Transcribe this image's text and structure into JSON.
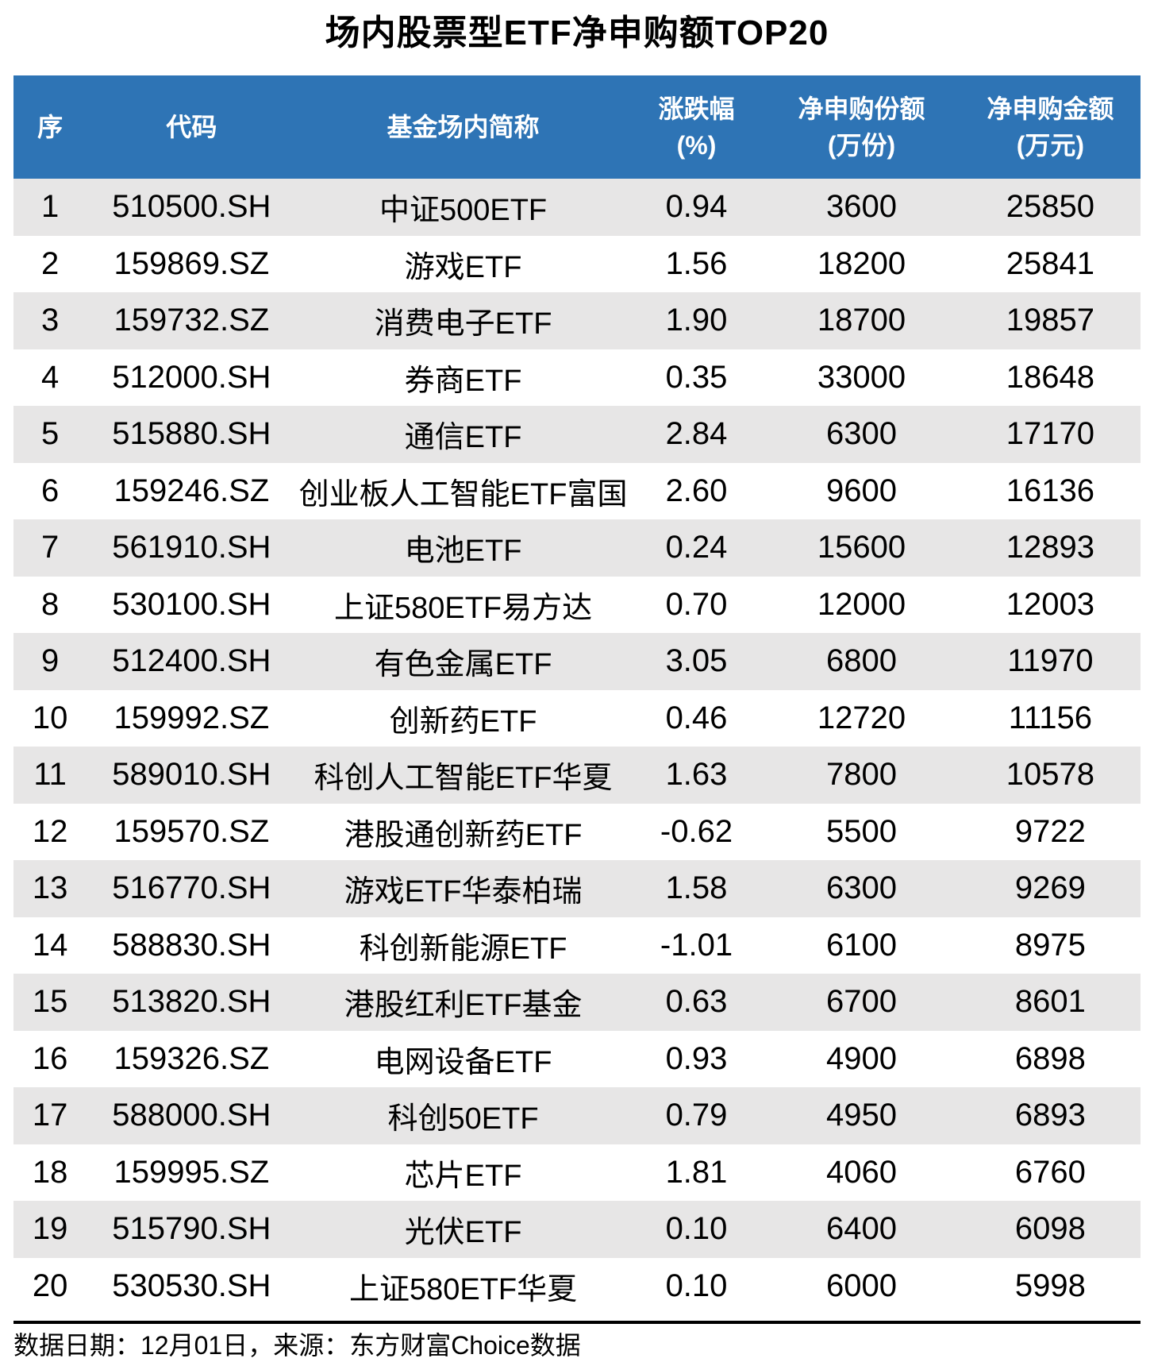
{
  "title": "场内股票型ETF净申购额TOP20",
  "colors": {
    "header_bg": "#2E74B5",
    "header_text": "#FFFFFF",
    "stripe_bg": "#E7E6E6",
    "body_text": "#000000"
  },
  "table": {
    "columns": [
      {
        "id": "rank",
        "lines": [
          "序"
        ]
      },
      {
        "id": "code",
        "lines": [
          "代码"
        ]
      },
      {
        "id": "name",
        "lines": [
          "基金场内简称"
        ]
      },
      {
        "id": "change",
        "lines": [
          "涨跌幅",
          "(%)"
        ]
      },
      {
        "id": "net_shares",
        "lines": [
          "净申购份额",
          "(万份)"
        ]
      },
      {
        "id": "net_amount",
        "lines": [
          "净申购金额",
          "(万元)"
        ]
      }
    ],
    "rows": [
      {
        "rank": "1",
        "code": "510500.SH",
        "name": "中证500ETF",
        "change": "0.94",
        "net_shares": "3600",
        "net_amount": "25850"
      },
      {
        "rank": "2",
        "code": "159869.SZ",
        "name": "游戏ETF",
        "change": "1.56",
        "net_shares": "18200",
        "net_amount": "25841"
      },
      {
        "rank": "3",
        "code": "159732.SZ",
        "name": "消费电子ETF",
        "change": "1.90",
        "net_shares": "18700",
        "net_amount": "19857"
      },
      {
        "rank": "4",
        "code": "512000.SH",
        "name": "券商ETF",
        "change": "0.35",
        "net_shares": "33000",
        "net_amount": "18648"
      },
      {
        "rank": "5",
        "code": "515880.SH",
        "name": "通信ETF",
        "change": "2.84",
        "net_shares": "6300",
        "net_amount": "17170"
      },
      {
        "rank": "6",
        "code": "159246.SZ",
        "name": "创业板人工智能ETF富国",
        "change": "2.60",
        "net_shares": "9600",
        "net_amount": "16136"
      },
      {
        "rank": "7",
        "code": "561910.SH",
        "name": "电池ETF",
        "change": "0.24",
        "net_shares": "15600",
        "net_amount": "12893"
      },
      {
        "rank": "8",
        "code": "530100.SH",
        "name": "上证580ETF易方达",
        "change": "0.70",
        "net_shares": "12000",
        "net_amount": "12003"
      },
      {
        "rank": "9",
        "code": "512400.SH",
        "name": "有色金属ETF",
        "change": "3.05",
        "net_shares": "6800",
        "net_amount": "11970"
      },
      {
        "rank": "10",
        "code": "159992.SZ",
        "name": "创新药ETF",
        "change": "0.46",
        "net_shares": "12720",
        "net_amount": "11156"
      },
      {
        "rank": "11",
        "code": "589010.SH",
        "name": "科创人工智能ETF华夏",
        "change": "1.63",
        "net_shares": "7800",
        "net_amount": "10578"
      },
      {
        "rank": "12",
        "code": "159570.SZ",
        "name": "港股通创新药ETF",
        "change": "-0.62",
        "net_shares": "5500",
        "net_amount": "9722"
      },
      {
        "rank": "13",
        "code": "516770.SH",
        "name": "游戏ETF华泰柏瑞",
        "change": "1.58",
        "net_shares": "6300",
        "net_amount": "9269"
      },
      {
        "rank": "14",
        "code": "588830.SH",
        "name": "科创新能源ETF",
        "change": "-1.01",
        "net_shares": "6100",
        "net_amount": "8975"
      },
      {
        "rank": "15",
        "code": "513820.SH",
        "name": "港股红利ETF基金",
        "change": "0.63",
        "net_shares": "6700",
        "net_amount": "8601"
      },
      {
        "rank": "16",
        "code": "159326.SZ",
        "name": "电网设备ETF",
        "change": "0.93",
        "net_shares": "4900",
        "net_amount": "6898"
      },
      {
        "rank": "17",
        "code": "588000.SH",
        "name": "科创50ETF",
        "change": "0.79",
        "net_shares": "4950",
        "net_amount": "6893"
      },
      {
        "rank": "18",
        "code": "159995.SZ",
        "name": "芯片ETF",
        "change": "1.81",
        "net_shares": "4060",
        "net_amount": "6760"
      },
      {
        "rank": "19",
        "code": "515790.SH",
        "name": "光伏ETF",
        "change": "0.10",
        "net_shares": "6400",
        "net_amount": "6098"
      },
      {
        "rank": "20",
        "code": "530530.SH",
        "name": "上证580ETF华夏",
        "change": "0.10",
        "net_shares": "6000",
        "net_amount": "5998"
      }
    ]
  },
  "footer": {
    "text": "数据日期：12月01日，来源：东方财富Choice数据"
  },
  "chart_data": {
    "type": "table",
    "title": "场内股票型ETF净申购额TOP20",
    "headers": [
      "序",
      "代码",
      "基金场内简称",
      "涨跌幅(%)",
      "净申购份额(万份)",
      "净申购金额(万元)"
    ],
    "rows": [
      [
        1,
        "510500.SH",
        "中证500ETF",
        0.94,
        3600,
        25850
      ],
      [
        2,
        "159869.SZ",
        "游戏ETF",
        1.56,
        18200,
        25841
      ],
      [
        3,
        "159732.SZ",
        "消费电子ETF",
        1.9,
        18700,
        19857
      ],
      [
        4,
        "512000.SH",
        "券商ETF",
        0.35,
        33000,
        18648
      ],
      [
        5,
        "515880.SH",
        "通信ETF",
        2.84,
        6300,
        17170
      ],
      [
        6,
        "159246.SZ",
        "创业板人工智能ETF富国",
        2.6,
        9600,
        16136
      ],
      [
        7,
        "561910.SH",
        "电池ETF",
        0.24,
        15600,
        12893
      ],
      [
        8,
        "530100.SH",
        "上证580ETF易方达",
        0.7,
        12000,
        12003
      ],
      [
        9,
        "512400.SH",
        "有色金属ETF",
        3.05,
        6800,
        11970
      ],
      [
        10,
        "159992.SZ",
        "创新药ETF",
        0.46,
        12720,
        11156
      ],
      [
        11,
        "589010.SH",
        "科创人工智能ETF华夏",
        1.63,
        7800,
        10578
      ],
      [
        12,
        "159570.SZ",
        "港股通创新药ETF",
        -0.62,
        5500,
        9722
      ],
      [
        13,
        "516770.SH",
        "游戏ETF华泰柏瑞",
        1.58,
        6300,
        9269
      ],
      [
        14,
        "588830.SH",
        "科创新能源ETF",
        -1.01,
        6100,
        8975
      ],
      [
        15,
        "513820.SH",
        "港股红利ETF基金",
        0.63,
        6700,
        8601
      ],
      [
        16,
        "159326.SZ",
        "电网设备ETF",
        0.93,
        4900,
        6898
      ],
      [
        17,
        "588000.SH",
        "科创50ETF",
        0.79,
        4950,
        6893
      ],
      [
        18,
        "159995.SZ",
        "芯片ETF",
        1.81,
        4060,
        6760
      ],
      [
        19,
        "515790.SH",
        "光伏ETF",
        0.1,
        6400,
        6098
      ],
      [
        20,
        "530530.SH",
        "上证580ETF华夏",
        0.1,
        6000,
        5998
      ]
    ],
    "note": "数据日期：12月01日，来源：东方财富Choice数据",
    "stripe": "odd rows shaded"
  }
}
